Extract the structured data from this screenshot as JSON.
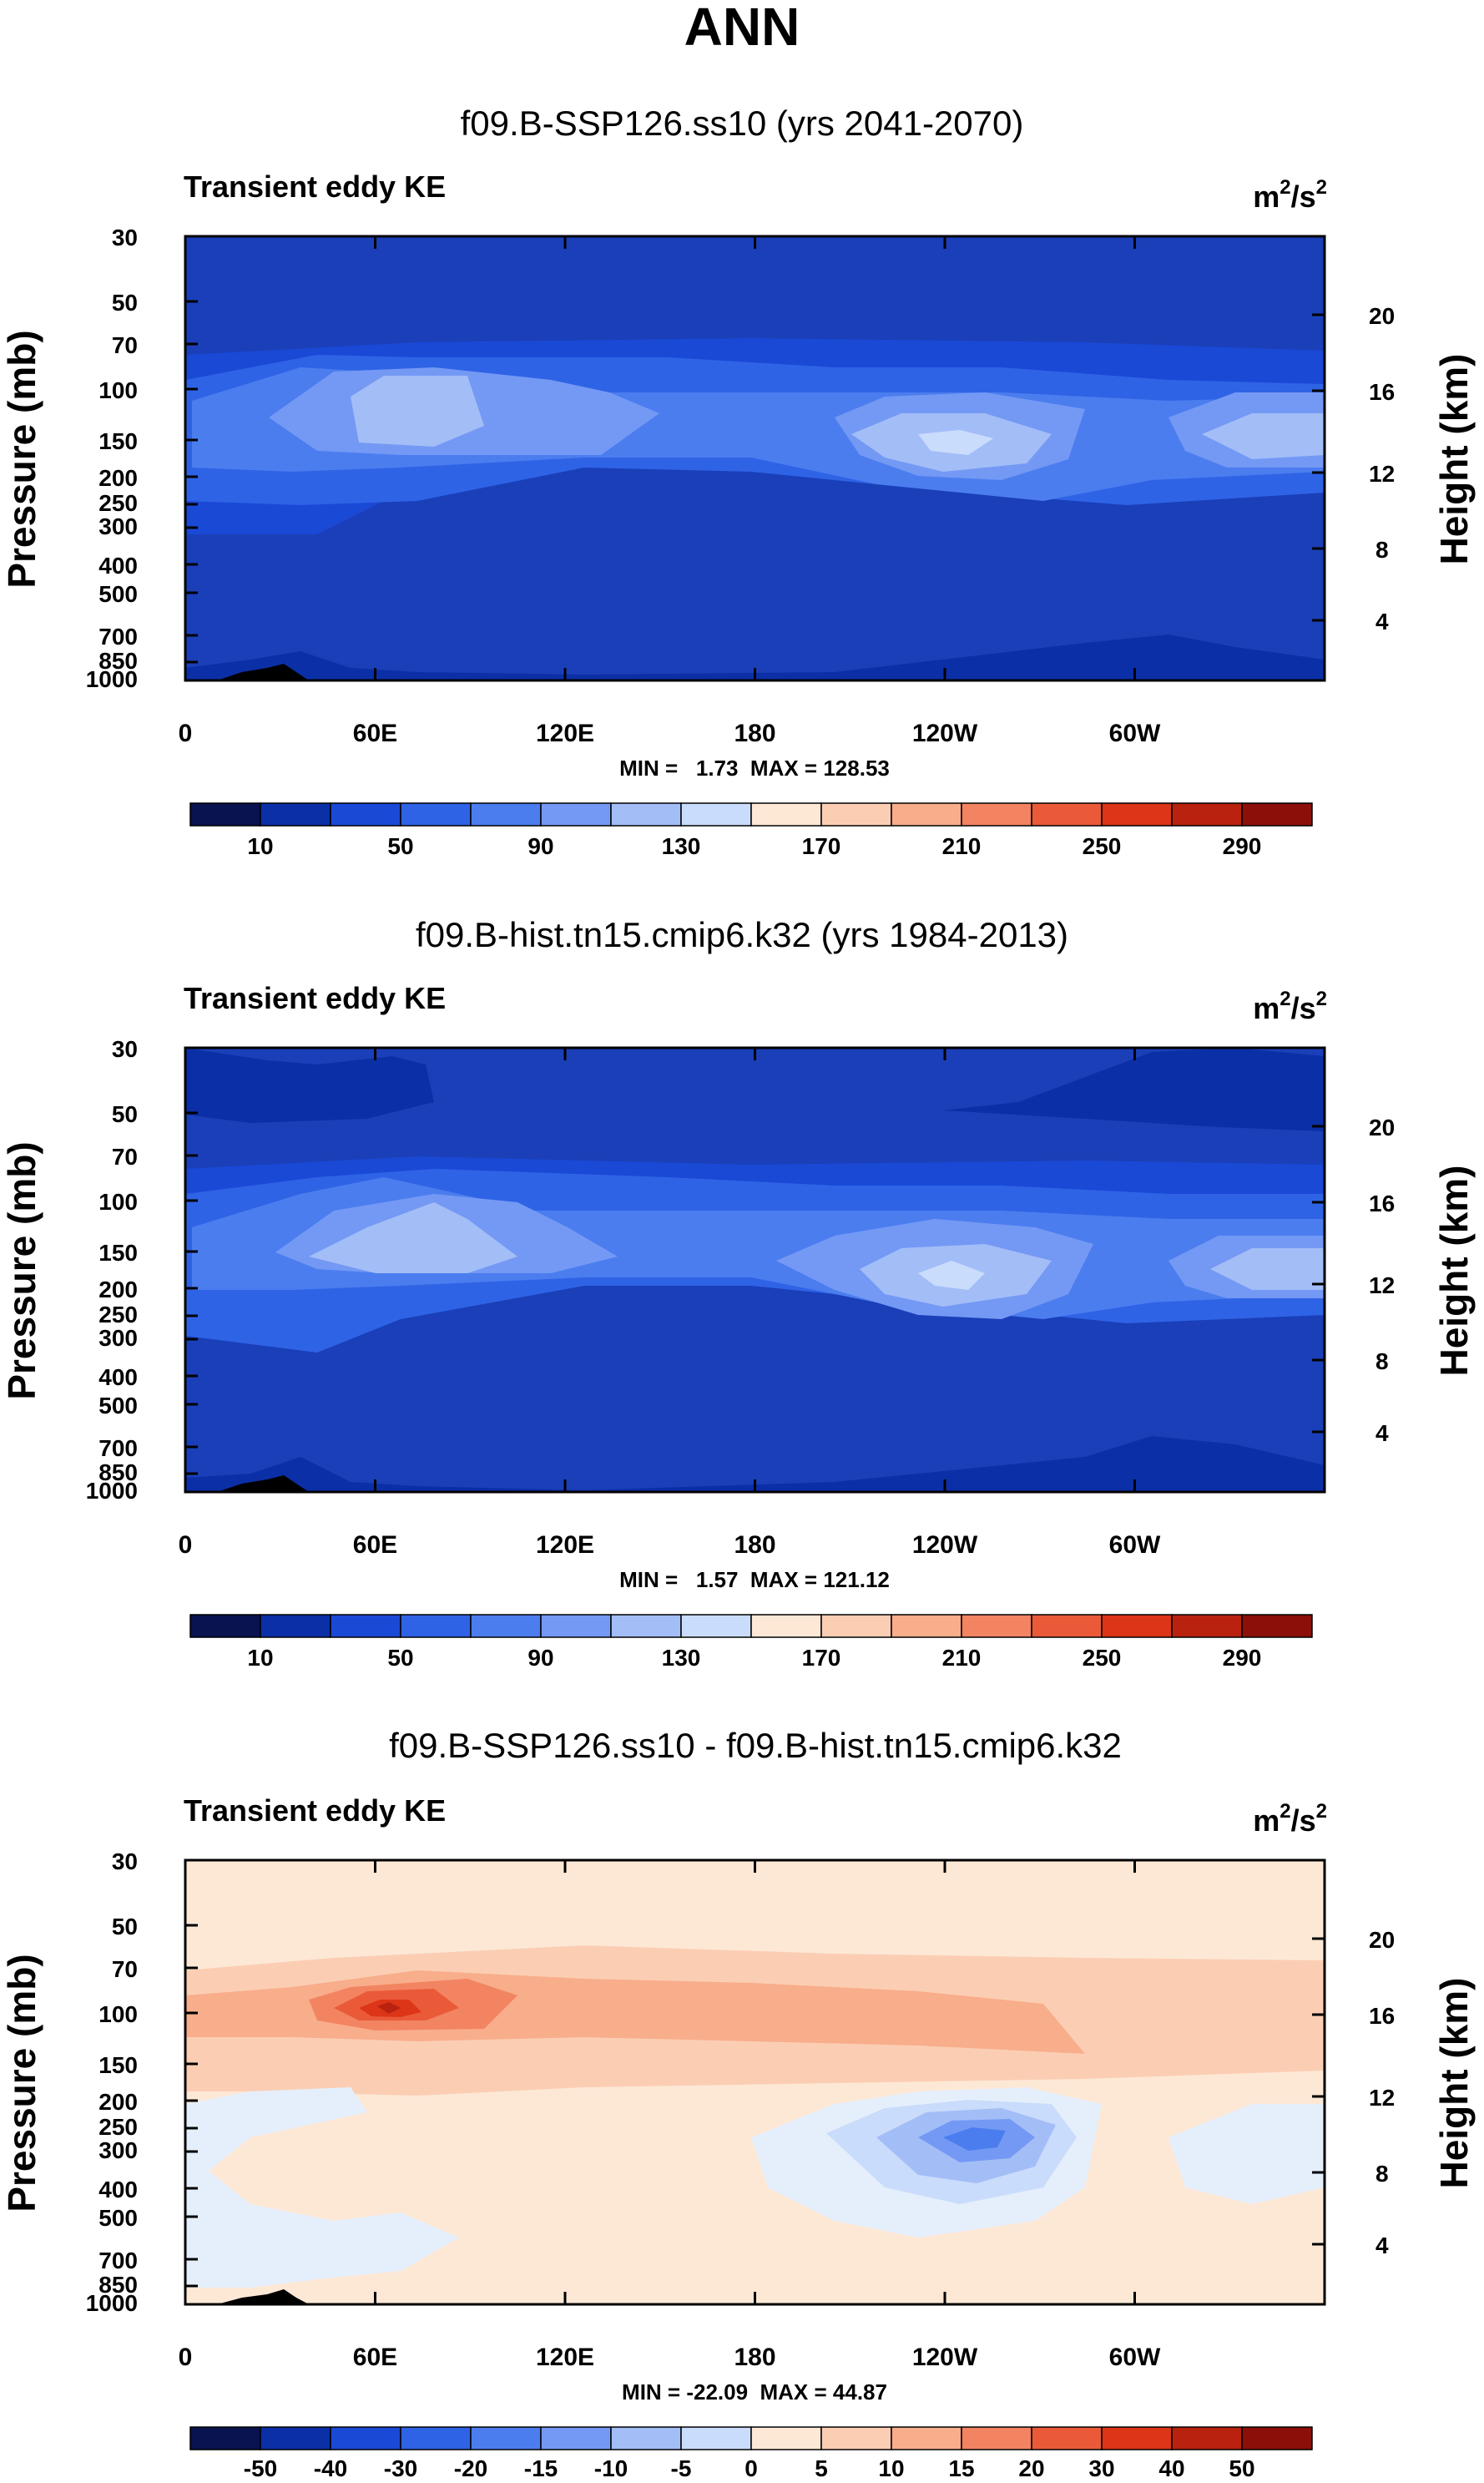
{
  "page": {
    "title": "ANN"
  },
  "colors": {
    "abs_palette": [
      "#08134f",
      "#0b2fa6",
      "#1a49d6",
      "#2f63e6",
      "#4b7def",
      "#7499f4",
      "#a3bdf7",
      "#cadcfb",
      "#e5effc",
      "#fde8d6",
      "#fbceb4",
      "#f8ad8b",
      "#f28462",
      "#ea5a39",
      "#dd3517",
      "#b8220e",
      "#8c0f0a"
    ],
    "diff_palette": [
      "#08134f",
      "#0b2fa6",
      "#1a49d6",
      "#2f63e6",
      "#4b7def",
      "#7499f4",
      "#a3bdf7",
      "#cadcfb",
      "#e5effc",
      "#fde8d6",
      "#fbceb4",
      "#f8ad8b",
      "#f28462",
      "#ea5a39",
      "#dd3517",
      "#b8220e",
      "#8c0f0a"
    ],
    "background_abs": "#1a3fb8",
    "background_diff": "#fde8d6",
    "terrain": "#000000"
  },
  "chart_data": [
    {
      "type": "contour",
      "title": "f09.B-SSP126.ss10 (yrs 2041-2070)",
      "left_label": "Transient eddy KE",
      "units_base": "m",
      "units_exp1": "2",
      "units_mid": "/s",
      "units_exp2": "2",
      "ylabel": "Pressure (mb)",
      "ylabel_right": "Height (km)",
      "pressure_ticks": [
        30,
        50,
        70,
        100,
        150,
        200,
        250,
        300,
        400,
        500,
        700,
        850,
        1000
      ],
      "height_ticks": [
        20,
        16,
        12,
        8,
        4
      ],
      "lon_ticks": [
        0,
        60,
        120,
        180,
        240,
        300
      ],
      "lon_labels": [
        "0",
        "60E",
        "120E",
        "180",
        "120W",
        "60W"
      ],
      "stats": "MIN =   1.73  MAX = 128.53",
      "colorbar_levels": [
        "10",
        "50",
        "90",
        "130",
        "170",
        "210",
        "250",
        "290"
      ],
      "features": [
        {
          "lon": 80,
          "p": 120,
          "value": 125
        },
        {
          "lon": 238,
          "p": 155,
          "value": 128
        },
        {
          "lon": 335,
          "p": 150,
          "value": 110
        }
      ]
    },
    {
      "type": "contour",
      "title": "f09.B-hist.tn15.cmip6.k32 (yrs 1984-2013)",
      "left_label": "Transient eddy KE",
      "units_base": "m",
      "units_exp1": "2",
      "units_mid": "/s",
      "units_exp2": "2",
      "ylabel": "Pressure (mb)",
      "ylabel_right": "Height (km)",
      "pressure_ticks": [
        30,
        50,
        70,
        100,
        150,
        200,
        250,
        300,
        400,
        500,
        700,
        850,
        1000
      ],
      "height_ticks": [
        20,
        16,
        12,
        8,
        4
      ],
      "lon_ticks": [
        0,
        60,
        120,
        180,
        240,
        300
      ],
      "lon_labels": [
        "0",
        "60E",
        "120E",
        "180",
        "120W",
        "60W"
      ],
      "stats": "MIN =   1.57  MAX = 121.12",
      "colorbar_levels": [
        "10",
        "50",
        "90",
        "130",
        "170",
        "210",
        "250",
        "290"
      ],
      "features": [
        {
          "lon": 65,
          "p": 130,
          "value": 115
        },
        {
          "lon": 238,
          "p": 180,
          "value": 121
        },
        {
          "lon": 338,
          "p": 150,
          "value": 100
        }
      ]
    },
    {
      "type": "contour",
      "title": "f09.B-SSP126.ss10 - f09.B-hist.tn15.cmip6.k32",
      "left_label": "Transient eddy KE",
      "units_base": "m",
      "units_exp1": "2",
      "units_mid": "/s",
      "units_exp2": "2",
      "ylabel": "Pressure (mb)",
      "ylabel_right": "Height (km)",
      "pressure_ticks": [
        30,
        50,
        70,
        100,
        150,
        200,
        250,
        300,
        400,
        500,
        700,
        850,
        1000
      ],
      "height_ticks": [
        20,
        16,
        12,
        8,
        4
      ],
      "lon_ticks": [
        0,
        60,
        120,
        180,
        240,
        300
      ],
      "lon_labels": [
        "0",
        "60E",
        "120E",
        "180",
        "120W",
        "60W"
      ],
      "stats": "MIN = -22.09  MAX = 44.87",
      "colorbar_levels": [
        "-50",
        "-40",
        "-30",
        "-20",
        "-15",
        "-10",
        "-5",
        "0",
        "5",
        "10",
        "15",
        "20",
        "30",
        "40",
        "50"
      ],
      "features": [
        {
          "lon": 60,
          "p": 100,
          "value": 44.87
        },
        {
          "lon": 255,
          "p": 235,
          "value": -22.09
        }
      ]
    }
  ]
}
